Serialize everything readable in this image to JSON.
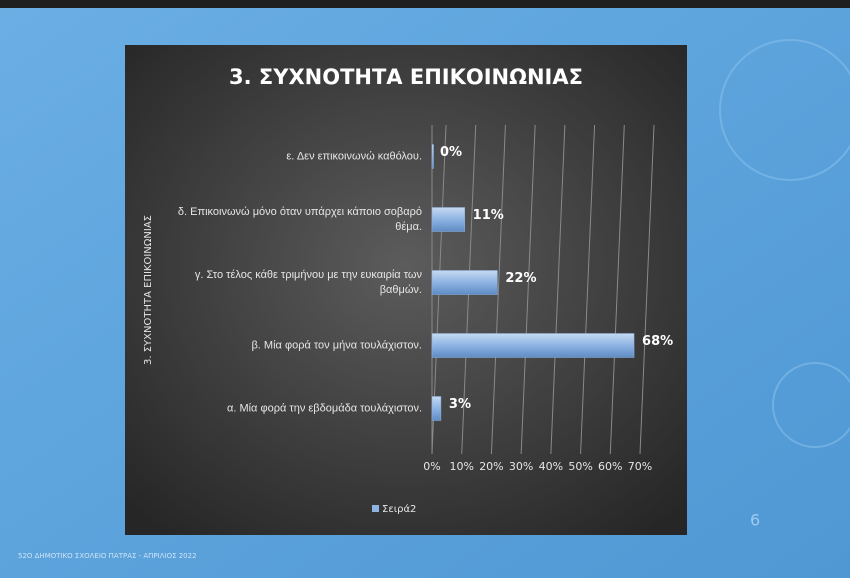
{
  "chart_data": {
    "type": "bar",
    "orientation": "horizontal",
    "title": "3. ΣΥΧΝΟΤΗΤΑ ΕΠΙΚΟΙΝΩΝΙΑΣ",
    "y_axis_label": "3. ΣΥΧΝΟΤΗΤΑ ΕΠΙΚΟΙΝΩΝΙΑΣ",
    "categories": [
      "α. Μία φορά την εβδομάδα τουλάχιστον.",
      "β. Μία φορά τον μήνα τουλάχιστον.",
      "γ. Στο τέλος κάθε τριμήνου με την ευκαιρία των βαθμών.",
      "δ. Επικοινωνώ μόνο όταν υπάρχει κάποιο σοβαρό θέμα.",
      "ε. Δεν επικοινωνώ καθόλου."
    ],
    "series": [
      {
        "name": "Σειρά2",
        "color": "#8db3e2",
        "values": [
          3,
          68,
          22,
          11,
          0
        ],
        "value_labels": [
          "3%",
          "68%",
          "22%",
          "11%",
          "0%"
        ]
      }
    ],
    "xlim": [
      0,
      70
    ],
    "xticks": [
      {
        "value": 0,
        "label": "0%"
      },
      {
        "value": 10,
        "label": "10%"
      },
      {
        "value": 20,
        "label": "20%"
      },
      {
        "value": 30,
        "label": "30%"
      },
      {
        "value": 40,
        "label": "40%"
      },
      {
        "value": 50,
        "label": "50%"
      },
      {
        "value": 60,
        "label": "60%"
      },
      {
        "value": 70,
        "label": "70%"
      }
    ],
    "grid": true,
    "legend": "bottom"
  },
  "footer": "52Ο ΔΗΜΟΤΙΚΟ ΣΧΟΛΕΙΟ ΠΑΤΡΑΣ - ΑΠΡΙΛΙΟΣ 2022",
  "page_number": "6"
}
